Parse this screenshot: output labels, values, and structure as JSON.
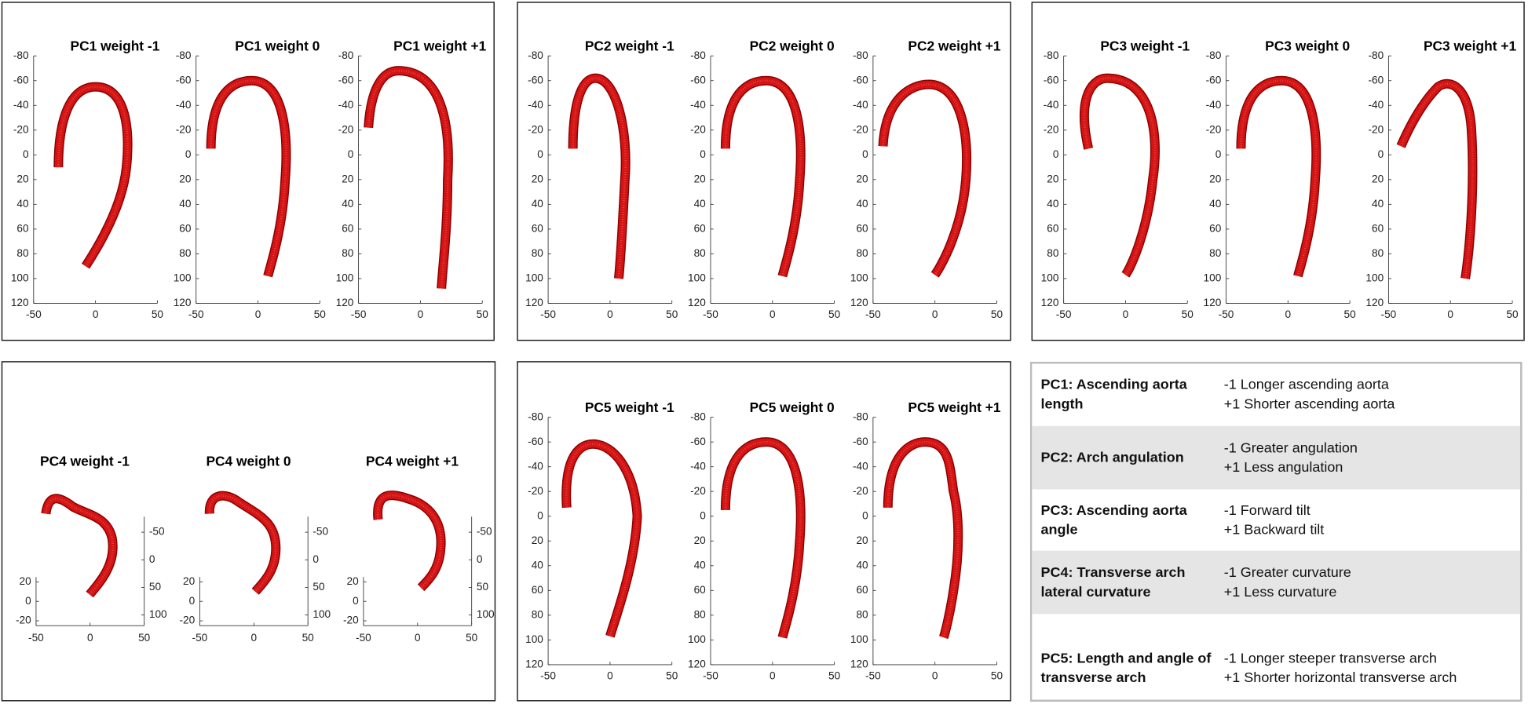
{
  "panels": [
    {
      "titles": [
        "PC1 weight -1",
        "PC1 weight 0",
        "PC1 weight +1"
      ],
      "xticks": [
        -50,
        0,
        50
      ],
      "yticks": [
        -80,
        -60,
        -40,
        -20,
        0,
        20,
        40,
        60,
        80,
        100,
        120
      ]
    },
    {
      "titles": [
        "PC2 weight -1",
        "PC2 weight 0",
        "PC2 weight +1"
      ],
      "xticks": [
        -50,
        0,
        50
      ],
      "yticks": [
        -80,
        -60,
        -40,
        -20,
        0,
        20,
        40,
        60,
        80,
        100,
        120
      ]
    },
    {
      "titles": [
        "PC3 weight -1",
        "PC3 weight 0",
        "PC3 weight +1"
      ],
      "xticks": [
        -50,
        0,
        50
      ],
      "yticks": [
        -80,
        -60,
        -40,
        -20,
        0,
        20,
        40,
        60,
        80,
        100,
        120
      ]
    },
    {
      "titles": [
        "PC4 weight -1",
        "PC4 weight 0",
        "PC4 weight +1"
      ],
      "xticks": [
        -50,
        0,
        50
      ],
      "yticks": [
        20,
        0,
        -20
      ],
      "zticks": [
        -50,
        0,
        50,
        100
      ]
    },
    {
      "titles": [
        "PC5 weight -1",
        "PC5 weight 0",
        "PC5 weight +1"
      ],
      "xticks": [
        -50,
        0,
        50
      ],
      "yticks": [
        -80,
        -60,
        -40,
        -20,
        0,
        20,
        40,
        60,
        80,
        100,
        120
      ]
    }
  ],
  "legend": {
    "rows": [
      {
        "label": "PC1: Ascending aorta length",
        "effects": [
          "-1 Longer ascending aorta",
          "+1 Shorter ascending aorta"
        ]
      },
      {
        "label": "PC2: Arch angulation",
        "effects": [
          "-1 Greater angulation",
          "+1 Less angulation"
        ]
      },
      {
        "label": "PC3: Ascending aorta angle",
        "effects": [
          "-1 Forward tilt",
          "+1 Backward tilt"
        ]
      },
      {
        "label": "PC4: Transverse arch lateral curvature",
        "effects": [
          "-1 Greater curvature",
          "+1 Less curvature"
        ]
      },
      {
        "label": "PC5: Length and angle of transverse arch",
        "effects": [
          "-1 Longer steeper transverse arch",
          "+1 Shorter horizontal transverse arch"
        ]
      }
    ]
  }
}
